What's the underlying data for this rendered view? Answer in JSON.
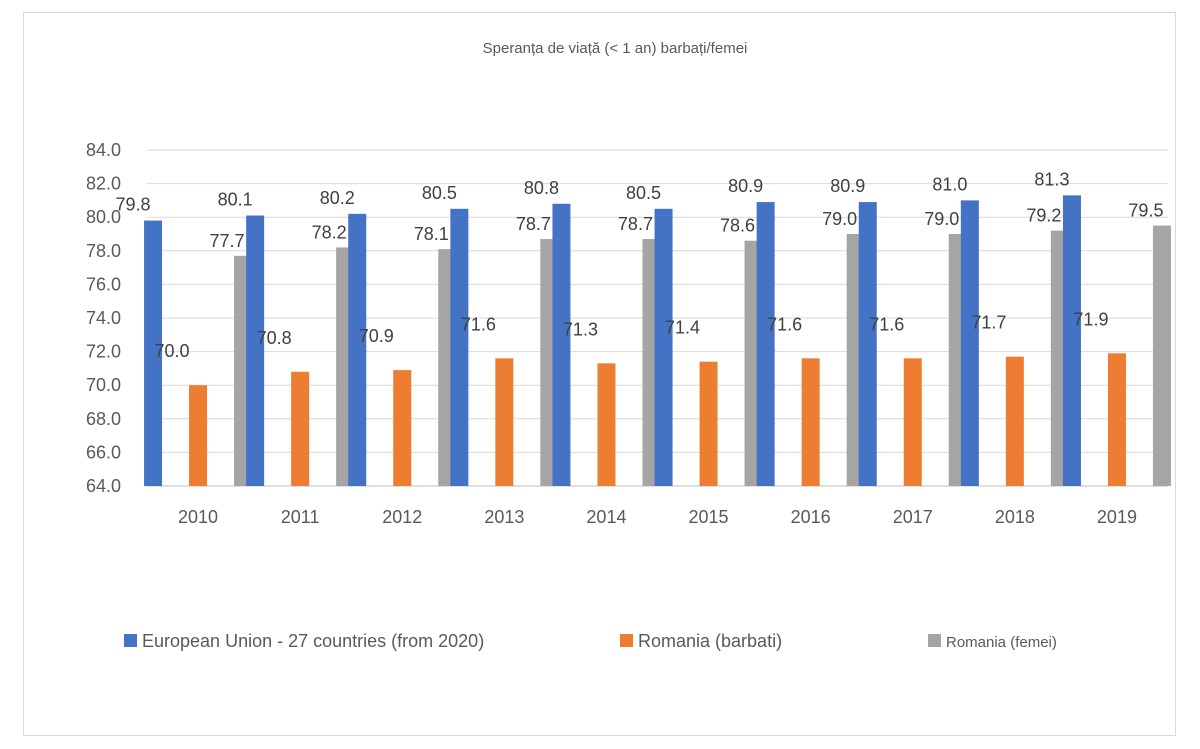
{
  "chart_data": {
    "type": "bar",
    "title": "Speranța de viață (< 1 an) barbați/femei",
    "categories": [
      "2010",
      "2011",
      "2012",
      "2013",
      "2014",
      "2015",
      "2016",
      "2017",
      "2018",
      "2019"
    ],
    "series": [
      {
        "name": "European Union - 27 countries (from 2020)",
        "color": "#4472c4",
        "values": [
          79.8,
          80.1,
          80.2,
          80.5,
          80.8,
          80.5,
          80.9,
          80.9,
          81.0,
          81.3
        ]
      },
      {
        "name": "Romania (barbati)",
        "color": "#ed7d31",
        "values": [
          70.0,
          70.8,
          70.9,
          71.6,
          71.3,
          71.4,
          71.6,
          71.6,
          71.7,
          71.9
        ]
      },
      {
        "name": "Romania (femei)",
        "color": "#a5a5a5",
        "values": [
          77.7,
          78.2,
          78.1,
          78.7,
          78.7,
          78.6,
          79.0,
          79.0,
          79.2,
          79.5
        ]
      }
    ],
    "ylim": [
      64.0,
      84.0
    ],
    "yticks": [
      64.0,
      66.0,
      68.0,
      70.0,
      72.0,
      74.0,
      76.0,
      78.0,
      80.0,
      82.0,
      84.0
    ],
    "ytick_decimals": 1,
    "grid": true,
    "legend": "bottom",
    "data_labels": true
  }
}
